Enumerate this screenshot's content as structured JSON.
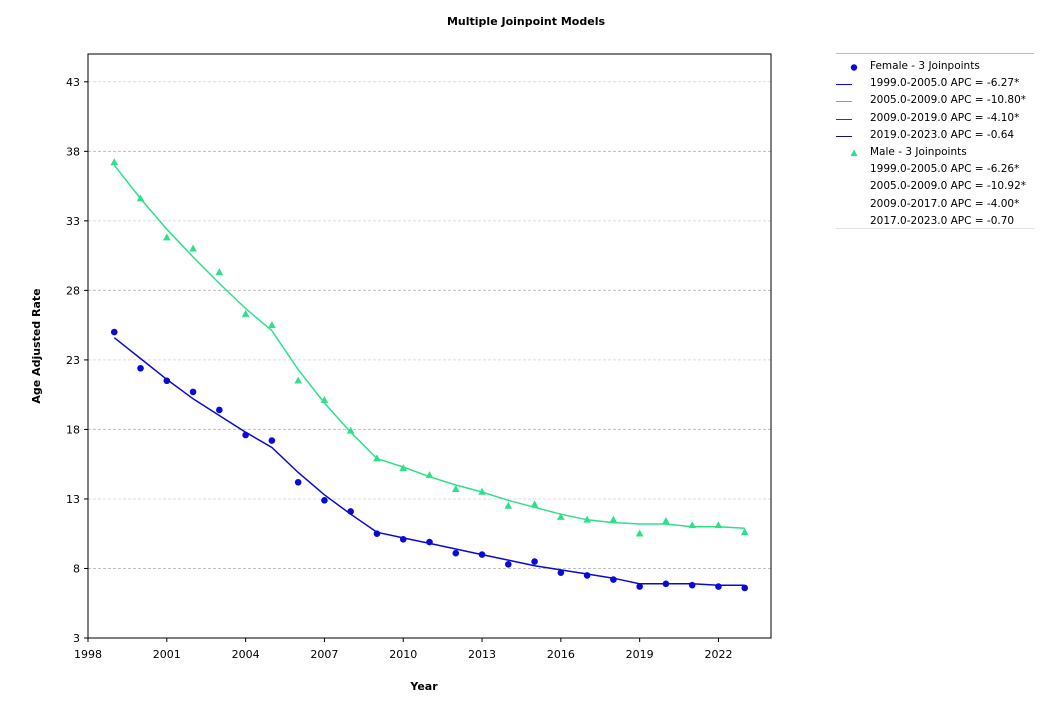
{
  "chart_data": {
    "type": "line",
    "title": "Multiple Joinpoint Models",
    "xlabel": "Year",
    "ylabel": "Age Adjusted Rate",
    "xlim": [
      1998,
      2024
    ],
    "ylim": [
      3,
      45
    ],
    "xticks": [
      1998,
      2001,
      2004,
      2007,
      2010,
      2013,
      2016,
      2019,
      2022
    ],
    "yticks": [
      3,
      8,
      13,
      18,
      23,
      28,
      33,
      38,
      43
    ],
    "grid": "horizontal dashed",
    "legend_position": "right",
    "series": [
      {
        "name": "Female - 3 Joinpoints",
        "color": "#0a0ad6",
        "marker": "circle",
        "x": [
          1999,
          2000,
          2001,
          2002,
          2003,
          2004,
          2005,
          2006,
          2007,
          2008,
          2009,
          2010,
          2011,
          2012,
          2013,
          2014,
          2015,
          2016,
          2017,
          2018,
          2019,
          2020,
          2021,
          2022,
          2023
        ],
        "observed": [
          25.0,
          22.4,
          21.5,
          20.7,
          19.4,
          17.6,
          17.2,
          14.2,
          12.9,
          12.1,
          10.5,
          10.1,
          9.9,
          9.1,
          9.0,
          8.3,
          8.5,
          7.7,
          7.5,
          7.2,
          6.7,
          6.9,
          6.8,
          6.7,
          6.6
        ],
        "fitted": [
          24.6,
          23.1,
          21.6,
          20.2,
          19.0,
          17.8,
          16.7,
          14.9,
          13.3,
          11.9,
          10.6,
          10.2,
          9.8,
          9.4,
          9.0,
          8.6,
          8.2,
          7.9,
          7.6,
          7.3,
          6.9,
          6.9,
          6.9,
          6.8,
          6.8
        ],
        "segments": [
          {
            "label": "1999.0-2005.0 APC =  -6.27*",
            "color": "#0a0ad6"
          },
          {
            "label": "2005.0-2009.0 APC = -10.80*",
            "color": "#8f8fd6"
          },
          {
            "label": "2009.0-2019.0 APC =  -4.10*",
            "color": "#3030d6"
          },
          {
            "label": "2019.0-2023.0 APC = -0.64",
            "color": "#101070"
          }
        ]
      },
      {
        "name": "Male - 3 Joinpoints",
        "color": "#2ee08a",
        "marker": "triangle",
        "x": [
          1999,
          2000,
          2001,
          2002,
          2003,
          2004,
          2005,
          2006,
          2007,
          2008,
          2009,
          2010,
          2011,
          2012,
          2013,
          2014,
          2015,
          2016,
          2017,
          2018,
          2019,
          2020,
          2021,
          2022,
          2023
        ],
        "observed": [
          37.2,
          34.6,
          31.8,
          31.0,
          29.3,
          26.3,
          25.5,
          21.5,
          20.1,
          17.9,
          15.9,
          15.2,
          14.7,
          13.7,
          13.5,
          12.5,
          12.6,
          11.7,
          11.5,
          11.5,
          10.5,
          11.4,
          11.1,
          11.1,
          10.6
        ],
        "fitted": [
          37.0,
          34.6,
          32.4,
          30.4,
          28.5,
          26.7,
          25.1,
          22.3,
          19.9,
          17.8,
          15.9,
          15.3,
          14.6,
          14.0,
          13.5,
          12.9,
          12.4,
          11.9,
          11.5,
          11.3,
          11.2,
          11.2,
          11.0,
          11.0,
          10.9
        ],
        "segments": [
          {
            "label": "1999.0-2005.0 APC =  -6.26*",
            "color": "#2ee08a"
          },
          {
            "label": "2005.0-2009.0 APC = -10.92*",
            "color": "#2ee08a"
          },
          {
            "label": "2009.0-2017.0 APC =  -4.00*",
            "color": "#2ee08a"
          },
          {
            "label": "2017.0-2023.0 APC = -0.70",
            "color": "#2ee08a"
          }
        ]
      }
    ]
  }
}
